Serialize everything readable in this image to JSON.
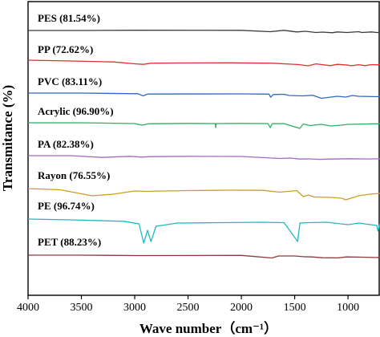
{
  "chart_data": {
    "type": "line",
    "ylabel": "Transmitance (%)",
    "xlabel": "Wave number（cm⁻¹）",
    "xlim": [
      4000,
      700
    ],
    "x_direction": "reversed",
    "x_ticks": [
      "4000",
      "3500",
      "3000",
      "2500",
      "2000",
      "1500",
      "1000"
    ],
    "y_ticks": "none",
    "grid": false,
    "series": [
      {
        "name": "PES (81.54%)",
        "color": "#3a3a3a",
        "points": [
          [
            4000,
            0
          ],
          [
            3500,
            0
          ],
          [
            3000,
            0.3
          ],
          [
            2000,
            0.2
          ],
          [
            1730,
            -1.5
          ],
          [
            1600,
            0.2
          ],
          [
            1480,
            -1.8
          ],
          [
            1400,
            -1
          ],
          [
            1300,
            -2.5
          ],
          [
            1240,
            -2
          ],
          [
            1150,
            -2.8
          ],
          [
            1100,
            -1.8
          ],
          [
            1010,
            -2.5
          ],
          [
            900,
            -1.5
          ],
          [
            870,
            -2.5
          ],
          [
            780,
            -1.8
          ],
          [
            720,
            -2.6
          ],
          [
            700,
            -1.5
          ]
        ]
      },
      {
        "name": "PP (72.62%)",
        "color": "#e03030",
        "points": [
          [
            4000,
            0
          ],
          [
            3600,
            -1
          ],
          [
            3200,
            -2.2
          ],
          [
            3000,
            -4.5
          ],
          [
            2920,
            -5.2
          ],
          [
            2850,
            -3.8
          ],
          [
            2600,
            -3.5
          ],
          [
            2100,
            -3.3
          ],
          [
            1700,
            -3.8
          ],
          [
            1460,
            -5.5
          ],
          [
            1376,
            -7
          ],
          [
            1300,
            -4.6
          ],
          [
            1166,
            -6.8
          ],
          [
            1100,
            -5.2
          ],
          [
            998,
            -6.2
          ],
          [
            973,
            -7
          ],
          [
            900,
            -5.6
          ],
          [
            840,
            -6.8
          ],
          [
            780,
            -5.5
          ],
          [
            720,
            -5.8
          ],
          [
            700,
            -5.2
          ]
        ]
      },
      {
        "name": "PVC (83.11%)",
        "color": "#2f68c4",
        "points": [
          [
            4000,
            0
          ],
          [
            3500,
            0
          ],
          [
            2970,
            -0.8
          ],
          [
            2920,
            -3.5
          ],
          [
            2880,
            -1.2
          ],
          [
            2000,
            -1
          ],
          [
            1740,
            -1.3
          ],
          [
            1725,
            -5.2
          ],
          [
            1700,
            -1.8
          ],
          [
            1600,
            -1.5
          ],
          [
            1550,
            -3
          ],
          [
            1430,
            -3.5
          ],
          [
            1330,
            -2.8
          ],
          [
            1250,
            -6.5
          ],
          [
            1100,
            -4
          ],
          [
            1020,
            -5
          ],
          [
            960,
            -3
          ],
          [
            900,
            -4
          ],
          [
            720,
            -4.5
          ],
          [
            700,
            -3.5
          ]
        ]
      },
      {
        "name": "Acrylic (96.90%)",
        "color": "#2fae63",
        "points": [
          [
            4000,
            0
          ],
          [
            3500,
            0
          ],
          [
            3000,
            -1
          ],
          [
            2930,
            -3
          ],
          [
            2870,
            -1.2
          ],
          [
            2500,
            -0.8
          ],
          [
            2244,
            -1
          ],
          [
            2240,
            -6
          ],
          [
            2236,
            -1
          ],
          [
            2000,
            -0.8
          ],
          [
            1750,
            -1
          ],
          [
            1730,
            -6
          ],
          [
            1710,
            -1.2
          ],
          [
            1600,
            -1
          ],
          [
            1452,
            -7
          ],
          [
            1420,
            -1.5
          ],
          [
            1360,
            -3.5
          ],
          [
            1250,
            -2
          ],
          [
            1160,
            -4
          ],
          [
            1070,
            -3
          ],
          [
            1000,
            -2
          ],
          [
            700,
            -1.2
          ]
        ]
      },
      {
        "name": "PA (82.38%)",
        "color": "#a46bc5",
        "points": [
          [
            4000,
            0
          ],
          [
            3600,
            0
          ],
          [
            3300,
            -2.2
          ],
          [
            3050,
            -0.8
          ],
          [
            2930,
            -1.8
          ],
          [
            2860,
            -1.2
          ],
          [
            2500,
            -0.8
          ],
          [
            2000,
            -1
          ],
          [
            1640,
            -3.5
          ],
          [
            1540,
            -3
          ],
          [
            1460,
            -4.2
          ],
          [
            1370,
            -4
          ],
          [
            1270,
            -4.6
          ],
          [
            1200,
            -4.3
          ],
          [
            1000,
            -3.8
          ],
          [
            800,
            -4.1
          ],
          [
            700,
            -3.9
          ]
        ]
      },
      {
        "name": "Rayon (76.55%)",
        "color": "#caa01f",
        "points": [
          [
            4000,
            0
          ],
          [
            3700,
            -1.5
          ],
          [
            3400,
            -9
          ],
          [
            3200,
            -7
          ],
          [
            3000,
            -3
          ],
          [
            2900,
            -3.5
          ],
          [
            2500,
            -2.5
          ],
          [
            2100,
            -2
          ],
          [
            1800,
            -2.2
          ],
          [
            1640,
            -4.5
          ],
          [
            1480,
            -2.5
          ],
          [
            1420,
            -10
          ],
          [
            1370,
            -8
          ],
          [
            1320,
            -10.5
          ],
          [
            1160,
            -11
          ],
          [
            1060,
            -12
          ],
          [
            1020,
            -14
          ],
          [
            900,
            -9
          ],
          [
            800,
            -7
          ],
          [
            700,
            -6
          ]
        ]
      },
      {
        "name": "PE (96.74%)",
        "color": "#1fb9c4",
        "points": [
          [
            4000,
            0
          ],
          [
            3600,
            -1
          ],
          [
            3100,
            -2.8
          ],
          [
            2960,
            -6
          ],
          [
            2915,
            -30
          ],
          [
            2880,
            -14
          ],
          [
            2848,
            -28
          ],
          [
            2800,
            -9
          ],
          [
            2600,
            -5
          ],
          [
            2200,
            -4.5
          ],
          [
            1800,
            -4
          ],
          [
            1600,
            -4.5
          ],
          [
            1472,
            -28
          ],
          [
            1462,
            -17
          ],
          [
            1450,
            -5
          ],
          [
            1380,
            -4.5
          ],
          [
            1200,
            -4
          ],
          [
            1000,
            -7
          ],
          [
            900,
            -5
          ],
          [
            730,
            -8
          ],
          [
            719,
            -15
          ],
          [
            700,
            -5
          ]
        ]
      },
      {
        "name": "PET (88.23%)",
        "color": "#8a3a3a",
        "points": [
          [
            4000,
            0
          ],
          [
            3500,
            0
          ],
          [
            2970,
            -0.5
          ],
          [
            2000,
            -0.3
          ],
          [
            1713,
            -3.5
          ],
          [
            1650,
            -1
          ],
          [
            1500,
            -1
          ],
          [
            1408,
            -2
          ],
          [
            1340,
            -2.2
          ],
          [
            1240,
            -3.2
          ],
          [
            1095,
            -3.4
          ],
          [
            1015,
            -2.2
          ],
          [
            870,
            -2.5
          ],
          [
            720,
            -3
          ],
          [
            700,
            -1.5
          ]
        ]
      }
    ]
  }
}
